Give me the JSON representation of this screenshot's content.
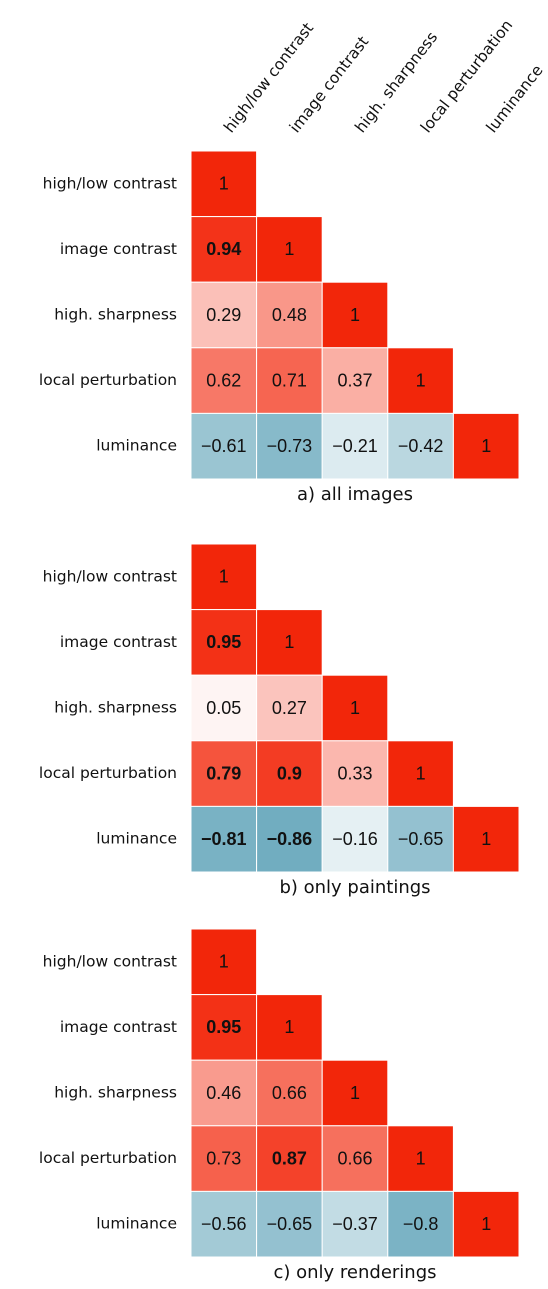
{
  "chart_data": [
    {
      "type": "heatmap",
      "caption": "a) all images",
      "x_labels": [
        "high/low contrast",
        "image contrast",
        "high. sharpness",
        "local perturbation",
        "luminance"
      ],
      "y_labels": [
        "high/low contrast",
        "image contrast",
        "high. sharpness",
        "local perturbation",
        "luminance"
      ],
      "values": [
        [
          1
        ],
        [
          0.94,
          1
        ],
        [
          0.29,
          0.48,
          1
        ],
        [
          0.62,
          0.71,
          0.37,
          1
        ],
        [
          -0.61,
          -0.73,
          -0.21,
          -0.42,
          1
        ]
      ],
      "value_labels": [
        [
          "1"
        ],
        [
          "0.94",
          "1"
        ],
        [
          "0.29",
          "0.48",
          "1"
        ],
        [
          "0.62",
          "0.71",
          "0.37",
          "1"
        ],
        [
          "−0.61",
          "−0.73",
          "−0.21",
          "−0.42",
          "1"
        ]
      ],
      "bold": [
        [
          false
        ],
        [
          true,
          false
        ],
        [
          false,
          false,
          false
        ],
        [
          false,
          false,
          false,
          false
        ],
        [
          false,
          false,
          false,
          false,
          false
        ]
      ],
      "clim": [
        -1,
        1
      ],
      "colors": [
        "#5aa0b6",
        "#ffffff",
        "#f2260a"
      ]
    },
    {
      "type": "heatmap",
      "caption": "b) only paintings",
      "y_labels": [
        "high/low contrast",
        "image contrast",
        "high. sharpness",
        "local perturbation",
        "luminance"
      ],
      "values": [
        [
          1
        ],
        [
          0.95,
          1
        ],
        [
          0.05,
          0.27,
          1
        ],
        [
          0.79,
          0.9,
          0.33,
          1
        ],
        [
          -0.81,
          -0.86,
          -0.16,
          -0.65,
          1
        ]
      ],
      "value_labels": [
        [
          "1"
        ],
        [
          "0.95",
          "1"
        ],
        [
          "0.05",
          "0.27",
          "1"
        ],
        [
          "0.79",
          "0.9",
          "0.33",
          "1"
        ],
        [
          "−0.81",
          "−0.86",
          "−0.16",
          "−0.65",
          "1"
        ]
      ],
      "bold": [
        [
          false
        ],
        [
          true,
          false
        ],
        [
          false,
          false,
          false
        ],
        [
          true,
          true,
          false,
          false
        ],
        [
          true,
          true,
          false,
          false,
          false
        ]
      ],
      "clim": [
        -1,
        1
      ],
      "colors": [
        "#5aa0b6",
        "#ffffff",
        "#f2260a"
      ]
    },
    {
      "type": "heatmap",
      "caption": "c) only renderings",
      "y_labels": [
        "high/low contrast",
        "image contrast",
        "high. sharpness",
        "local perturbation",
        "luminance"
      ],
      "values": [
        [
          1
        ],
        [
          0.95,
          1
        ],
        [
          0.46,
          0.66,
          1
        ],
        [
          0.73,
          0.87,
          0.66,
          1
        ],
        [
          -0.56,
          -0.65,
          -0.37,
          -0.8,
          1
        ]
      ],
      "value_labels": [
        [
          "1"
        ],
        [
          "0.95",
          "1"
        ],
        [
          "0.46",
          "0.66",
          "1"
        ],
        [
          "0.73",
          "0.87",
          "0.66",
          "1"
        ],
        [
          "−0.56",
          "−0.65",
          "−0.37",
          "−0.8",
          "1"
        ]
      ],
      "bold": [
        [
          false
        ],
        [
          true,
          false
        ],
        [
          false,
          false,
          false
        ],
        [
          false,
          true,
          false,
          false
        ],
        [
          false,
          false,
          false,
          false,
          false
        ]
      ],
      "clim": [
        -1,
        1
      ],
      "colors": [
        "#5aa0b6",
        "#ffffff",
        "#f2260a"
      ]
    }
  ]
}
